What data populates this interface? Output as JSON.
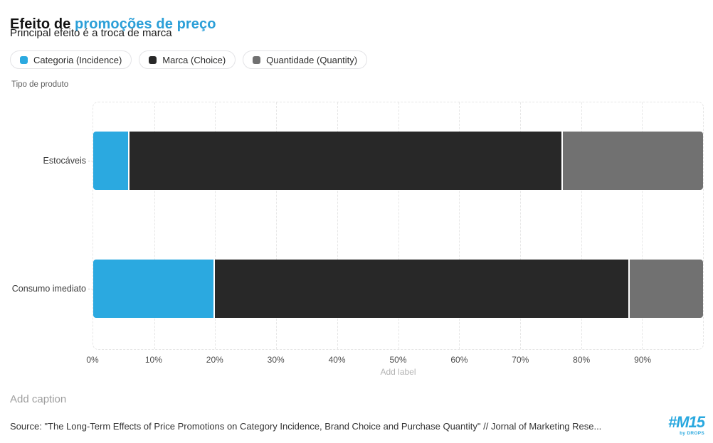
{
  "header": {
    "title_prefix": "Efeito de ",
    "title_highlight": "promoções de preço",
    "title_highlight_color": "#2B9FD8",
    "subtitle": "Principal efeito é a troca de marca"
  },
  "legend": {
    "items": [
      {
        "label": "Categoria (Incidence)",
        "color": "#2BA9E0"
      },
      {
        "label": "Marca (Choice)",
        "color": "#282828"
      },
      {
        "label": "Quantidade (Quantity)",
        "color": "#717171"
      }
    ]
  },
  "chart_data": {
    "type": "bar",
    "orientation": "horizontal",
    "stacked": true,
    "axis_title": "Tipo de produto",
    "categories": [
      "Estocáveis",
      "Consumo imediato"
    ],
    "series": [
      {
        "name": "Categoria (Incidence)",
        "color": "#2BA9E0",
        "values": [
          6,
          20
        ]
      },
      {
        "name": "Marca (Choice)",
        "color": "#282828",
        "values": [
          71,
          68
        ]
      },
      {
        "name": "Quantidade (Quantity)",
        "color": "#717171",
        "values": [
          23,
          12
        ]
      }
    ],
    "xlim": [
      0,
      100
    ],
    "x_tick_values": [
      0,
      10,
      20,
      30,
      40,
      50,
      60,
      70,
      80,
      90
    ],
    "x_tick_labels": [
      "0%",
      "10%",
      "20%",
      "30%",
      "40%",
      "50%",
      "60%",
      "70%",
      "80%",
      "90%"
    ],
    "grid": "vertical-dashed",
    "legend_position": "top"
  },
  "axis": {
    "add_label_placeholder": "Add label"
  },
  "footer": {
    "caption_placeholder": "Add caption",
    "source": "Source: \"The Long-Term Effects of Price Promotions on Category Incidence, Brand Choice and Purchase Quantity\" // Jornal of Marketing Rese...",
    "logo": {
      "text": "#M15",
      "sub": "by DROPS",
      "color": "#29A8DF"
    }
  }
}
